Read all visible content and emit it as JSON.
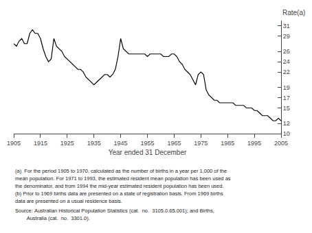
{
  "chart_data": {
    "type": "line",
    "xlabel": "Year ended 31 December",
    "ylabel": "Rate(a)",
    "color": "#000000",
    "grid": false,
    "xlim": [
      1905,
      2005
    ],
    "ylim": [
      10,
      32
    ],
    "xticks": [
      1905,
      1915,
      1925,
      1935,
      1945,
      1955,
      1965,
      1975,
      1985,
      1995,
      2005
    ],
    "yticks": [
      10,
      12,
      15,
      17,
      19,
      22,
      24,
      26,
      29,
      31
    ],
    "annotations": [
      "(a)  For the period 1905 to 1970, calculated as the number of births in a year per 1,000 of the",
      "mean population. For 1971 to 1993, the estimated resident mean population has been used as",
      "the denominator, and from 1994 the mid-year estimated resident population has been used.",
      "(b) Prior to 1969 births data are presented on a state of registration basis. From 1969 births",
      "data are presented on a usual residence basis.",
      "Source: Australian Historical Population Statistics (cat.  no.  3105.0.65.001); and Births,",
      "        Australia (cat.  no.  3301.0)."
    ],
    "x": [
      1905,
      1906,
      1907,
      1908,
      1909,
      1910,
      1911,
      1912,
      1913,
      1914,
      1915,
      1916,
      1917,
      1918,
      1919,
      1920,
      1921,
      1922,
      1923,
      1924,
      1925,
      1926,
      1927,
      1928,
      1929,
      1930,
      1931,
      1932,
      1933,
      1934,
      1935,
      1936,
      1937,
      1938,
      1939,
      1940,
      1941,
      1942,
      1943,
      1944,
      1945,
      1946,
      1947,
      1948,
      1949,
      1950,
      1951,
      1952,
      1953,
      1954,
      1955,
      1956,
      1957,
      1958,
      1959,
      1960,
      1961,
      1962,
      1963,
      1964,
      1965,
      1966,
      1967,
      1968,
      1969,
      1970,
      1971,
      1972,
      1973,
      1974,
      1975,
      1976,
      1977,
      1978,
      1979,
      1980,
      1981,
      1982,
      1983,
      1984,
      1985,
      1986,
      1987,
      1988,
      1989,
      1990,
      1991,
      1992,
      1993,
      1994,
      1995,
      1996,
      1997,
      1998,
      1999,
      2000,
      2001,
      2002,
      2003,
      2004,
      2005
    ],
    "values": [
      27.5,
      27.0,
      28.0,
      28.5,
      27.5,
      27.5,
      29.5,
      30.2,
      29.5,
      29.5,
      28.5,
      26.5,
      25.0,
      24.0,
      24.5,
      28.5,
      27.0,
      26.5,
      26.0,
      25.0,
      24.5,
      24.0,
      23.5,
      23.0,
      22.5,
      22.5,
      22.0,
      21.0,
      20.5,
      20.0,
      19.5,
      20.0,
      20.5,
      21.0,
      21.5,
      21.5,
      21.0,
      21.5,
      22.5,
      25.0,
      28.5,
      26.5,
      26.0,
      25.5,
      25.5,
      25.5,
      25.5,
      25.5,
      25.5,
      25.5,
      25.0,
      25.5,
      25.5,
      25.5,
      25.5,
      25.5,
      25.0,
      25.0,
      25.0,
      25.5,
      25.5,
      25.0,
      24.0,
      23.5,
      22.5,
      22.0,
      21.5,
      20.5,
      19.5,
      21.5,
      22.0,
      21.5,
      18.5,
      17.5,
      17.0,
      16.5,
      16.5,
      16.0,
      16.0,
      16.0,
      16.0,
      16.0,
      16.0,
      15.5,
      15.5,
      15.5,
      15.5,
      15.0,
      15.0,
      15.0,
      14.5,
      14.5,
      14.0,
      13.5,
      13.5,
      13.5,
      13.0,
      12.5,
      12.5,
      13.0,
      12.5
    ]
  }
}
